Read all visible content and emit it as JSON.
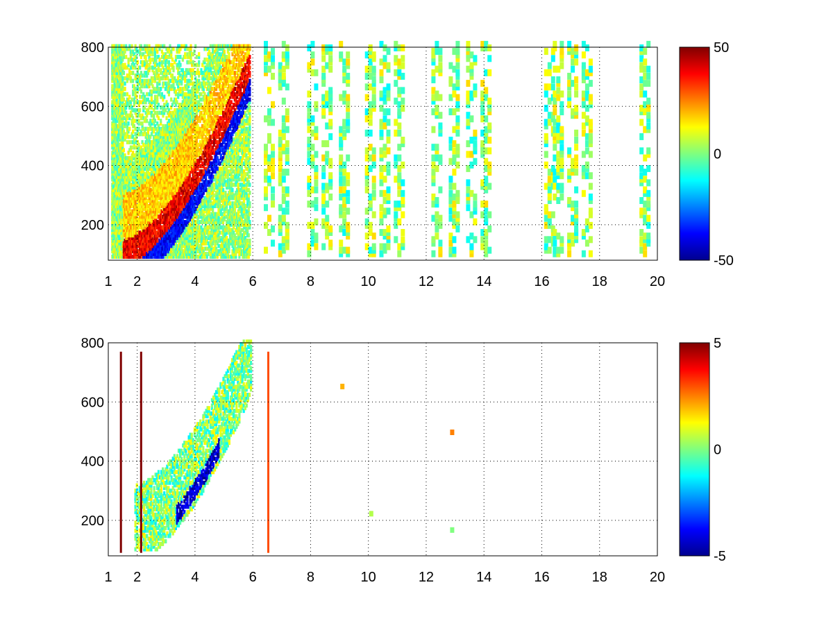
{
  "chart_data": [
    {
      "type": "heatmap",
      "title": "",
      "xlabel": "",
      "ylabel": "",
      "xlim": [
        1,
        20
      ],
      "ylim": [
        80,
        800
      ],
      "x_ticks": [
        "1",
        "2",
        "4",
        "6",
        "8",
        "10",
        "12",
        "14",
        "16",
        "18",
        "20"
      ],
      "y_ticks": [
        "200",
        "400",
        "600",
        "800"
      ],
      "grid": true,
      "colormap": "jet",
      "colorbar": {
        "min": -50,
        "max": 50,
        "ticks": [
          "50",
          "0",
          "-50"
        ]
      },
      "description_values": {
        "ridge_positive": [
          [
            2,
            120,
            35
          ],
          [
            2.5,
            150,
            35
          ],
          [
            3,
            180,
            38
          ],
          [
            3.5,
            230,
            40
          ],
          [
            4,
            280,
            42
          ],
          [
            4.5,
            320,
            38
          ],
          [
            5,
            360,
            35
          ],
          [
            5.5,
            410,
            30
          ]
        ],
        "ridge_negative": [
          [
            3.5,
            190,
            -35
          ],
          [
            4,
            230,
            -40
          ],
          [
            4.5,
            270,
            -42
          ],
          [
            5,
            320,
            -40
          ],
          [
            5.5,
            380,
            -38
          ],
          [
            5.8,
            470,
            -35
          ]
        ],
        "sparse_columns_x": [
          6.5,
          7,
          8,
          8.5,
          9.1,
          10,
          10.5,
          11,
          12.3,
          12.9,
          13.5,
          14,
          16.2,
          16.5,
          17,
          17.5,
          19.5
        ]
      }
    },
    {
      "type": "heatmap",
      "title": "",
      "xlabel": "",
      "ylabel": "",
      "xlim": [
        1,
        20
      ],
      "ylim": [
        80,
        800
      ],
      "x_ticks": [
        "1",
        "2",
        "4",
        "6",
        "8",
        "10",
        "12",
        "14",
        "16",
        "18",
        "20"
      ],
      "y_ticks": [
        "200",
        "400",
        "600",
        "800"
      ],
      "grid": true,
      "colormap": "jet",
      "colorbar": {
        "min": -5,
        "max": 5,
        "ticks": [
          "5",
          "0",
          "-5"
        ]
      },
      "description_values": {
        "blob_negative": [
          [
            3.5,
            200,
            -4
          ],
          [
            4,
            250,
            -4.5
          ],
          [
            4,
            380,
            -5
          ],
          [
            4.5,
            300,
            -3
          ]
        ],
        "isolated_points": [
          [
            9.1,
            650,
            2
          ],
          [
            12.9,
            495,
            2.5
          ],
          [
            12.9,
            165,
            0
          ],
          [
            10.1,
            220,
            0.5
          ]
        ],
        "strong_columns": [
          [
            1.4,
            5
          ],
          [
            2.1,
            5
          ],
          [
            6.5,
            3
          ]
        ]
      }
    }
  ]
}
